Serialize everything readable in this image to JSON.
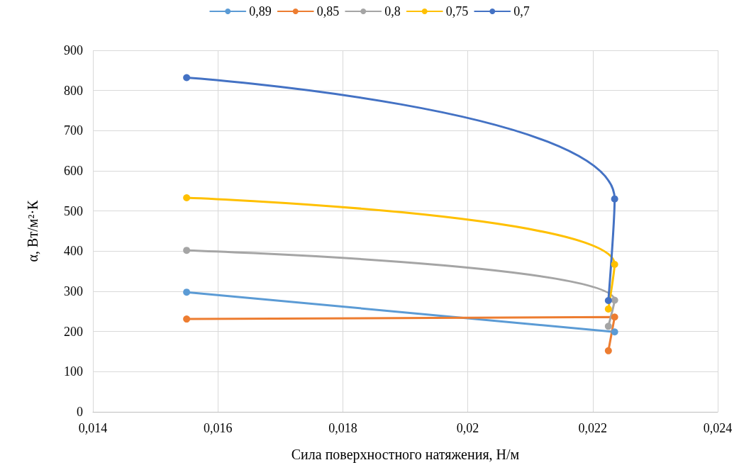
{
  "chart_data": {
    "type": "line",
    "xlabel": "Сила поверхностного натяжения, Н/м",
    "ylabel": "α, Вт/м²·К",
    "xlim": [
      0.014,
      0.024
    ],
    "xticks": [
      {
        "value": 0.014,
        "label": "0,014"
      },
      {
        "value": 0.016,
        "label": "0,016"
      },
      {
        "value": 0.018,
        "label": "0,018"
      },
      {
        "value": 0.02,
        "label": "0,02"
      },
      {
        "value": 0.022,
        "label": "0,022"
      },
      {
        "value": 0.024,
        "label": "0,024"
      }
    ],
    "ylim": [
      0,
      900
    ],
    "yticks": [
      0,
      100,
      200,
      300,
      400,
      500,
      600,
      700,
      800,
      900
    ],
    "grid": true,
    "legend": "top",
    "marker": "circle",
    "line_style": "solid",
    "series": [
      {
        "name": "0,89",
        "color": "#5b9bd5",
        "x": [
          0.0155,
          0.02235
        ],
        "values": [
          298,
          199
        ]
      },
      {
        "name": "0,85",
        "color": "#ed7d31",
        "x": [
          0.0155,
          0.02235,
          0.02225
        ],
        "values": [
          231,
          236,
          152
        ]
      },
      {
        "name": "0,8",
        "color": "#a5a5a5",
        "x": [
          0.0155,
          0.02235,
          0.02225
        ],
        "values": [
          402,
          278,
          213
        ]
      },
      {
        "name": "0,75",
        "color": "#ffc000",
        "x": [
          0.0155,
          0.02235,
          0.02225
        ],
        "values": [
          533,
          367,
          256
        ]
      },
      {
        "name": "0,7",
        "color": "#4472c4",
        "x": [
          0.0155,
          0.02235,
          0.02225
        ],
        "values": [
          832,
          530,
          277
        ]
      }
    ]
  }
}
